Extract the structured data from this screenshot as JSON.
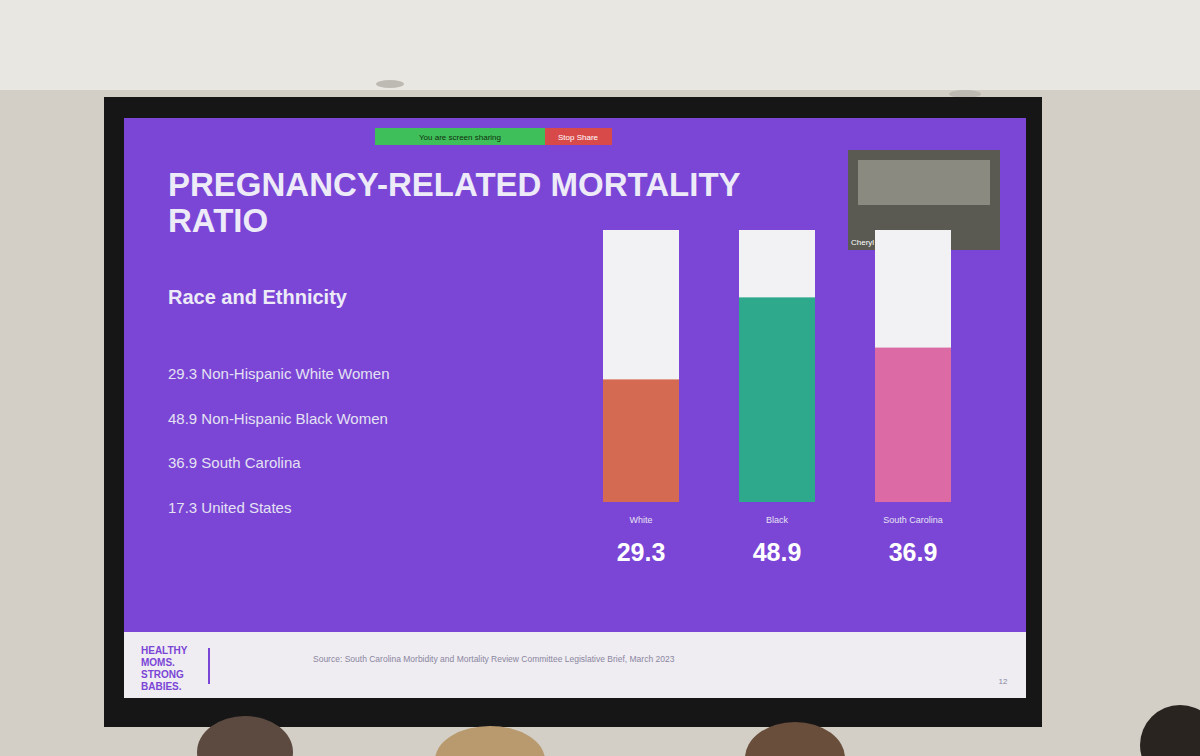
{
  "chart_data": {
    "type": "bar",
    "title": "PREGNANCY-RELATED MORTALITY RATIO",
    "subtitle": "Race and Ethnicity",
    "categories": [
      "White",
      "Black",
      "South Carolina"
    ],
    "values": [
      29.3,
      48.9,
      36.9
    ],
    "colors": [
      "#d56a52",
      "#2fa98c",
      "#dc6aa4"
    ],
    "ylim": [
      0,
      65
    ],
    "yticks": [],
    "tick_labels": "x",
    "data_labels": true,
    "grid": false,
    "annotations": [
      "29.3 Non-Hispanic White Women",
      "48.9 Non-Hispanic Black Women",
      "36.9 South Carolina",
      "17.3 United States",
      "Source: South Carolina Morbidity and Mortality Review Committee Legislative Brief, March 2023",
      "HEALTHY MOMS. STRONG BABIES.",
      "12",
      "You are screen sharing",
      "Stop Share",
      "Cheryl"
    ]
  }
}
